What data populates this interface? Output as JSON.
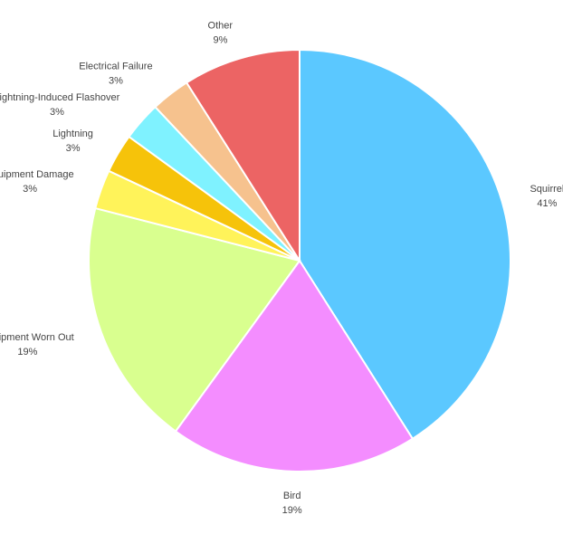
{
  "chart_data": {
    "type": "pie",
    "title": "",
    "start_angle_deg": 0,
    "direction": "clockwise",
    "slices": [
      {
        "label": "Squirrel",
        "percent_label": "41%",
        "value": 41,
        "color": "#5BC8FF"
      },
      {
        "label": "Bird",
        "percent_label": "19%",
        "value": 19,
        "color": "#F48DFF"
      },
      {
        "label": "Equipment Worn Out",
        "percent_label": "19%",
        "value": 19,
        "color": "#D9FF8F"
      },
      {
        "label": "Equipment Damage",
        "percent_label": "3%",
        "value": 3,
        "color": "#FFF35A"
      },
      {
        "label": "Lightning",
        "percent_label": "3%",
        "value": 3,
        "color": "#F6C30A"
      },
      {
        "label": "Lightning-Induced Flashover",
        "percent_label": "3%",
        "value": 3,
        "color": "#7FF2FF"
      },
      {
        "label": "Electrical Failure",
        "percent_label": "3%",
        "value": 3,
        "color": "#F6C28E"
      },
      {
        "label": "Other",
        "percent_label": "9%",
        "value": 9,
        "color": "#EC6464"
      }
    ]
  }
}
